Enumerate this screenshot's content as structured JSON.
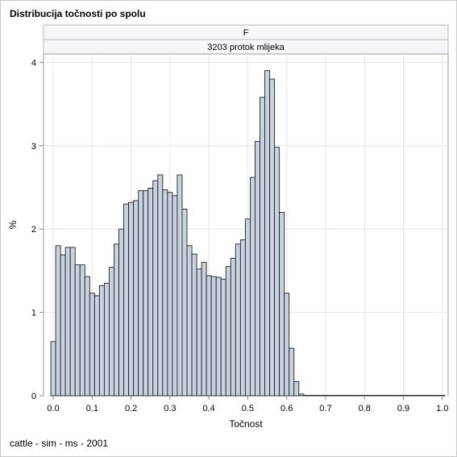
{
  "title": "Distribucija točnosti po spolu",
  "footnote": "cattle - sim - ms - 2001",
  "panel": {
    "row1_label": "F",
    "row2_label": "3203 protok mlijeka"
  },
  "colors": {
    "bar_fill": "#c9d3e0",
    "bar_stroke": "#222222",
    "grid": "#e6e6e6",
    "panel_header_fill": "#f6f7fb",
    "axis": "#888888"
  },
  "chart_data": {
    "type": "bar",
    "xlabel": "Točnost",
    "ylabel": "%",
    "xlim": [
      -0.025,
      1.015
    ],
    "ylim": [
      0,
      4.1
    ],
    "grid": true,
    "bin_width": 0.0125,
    "bin_start": -0.00625,
    "values": [
      0.65,
      1.8,
      1.69,
      1.78,
      1.78,
      1.57,
      1.57,
      1.43,
      1.23,
      1.2,
      1.32,
      1.35,
      1.54,
      1.82,
      2.0,
      2.3,
      2.32,
      2.34,
      2.46,
      2.46,
      2.49,
      2.58,
      2.65,
      2.47,
      2.44,
      2.4,
      2.65,
      2.24,
      1.8,
      1.7,
      1.52,
      1.6,
      1.44,
      1.43,
      1.42,
      1.4,
      1.55,
      1.65,
      1.82,
      1.87,
      2.12,
      2.62,
      3.05,
      3.58,
      3.9,
      3.8,
      2.98,
      2.2,
      1.23,
      0.57,
      0.17,
      0.02,
      0.005,
      0.005,
      0.005,
      0.005,
      0.005,
      0.005,
      0.005,
      0.005,
      0.005,
      0.005,
      0.005,
      0.005,
      0.005,
      0.005,
      0.005,
      0.005,
      0.005,
      0.005,
      0.005,
      0.005,
      0.005,
      0.005,
      0.005,
      0.005,
      0.005,
      0.005,
      0.005,
      0.005,
      0.005
    ],
    "x_ticks": [
      "0.0",
      "0.1",
      "0.2",
      "0.3",
      "0.4",
      "0.5",
      "0.6",
      "0.7",
      "0.8",
      "0.9",
      "1.0"
    ],
    "y_ticks": [
      "0",
      "1",
      "2",
      "3",
      "4"
    ]
  }
}
